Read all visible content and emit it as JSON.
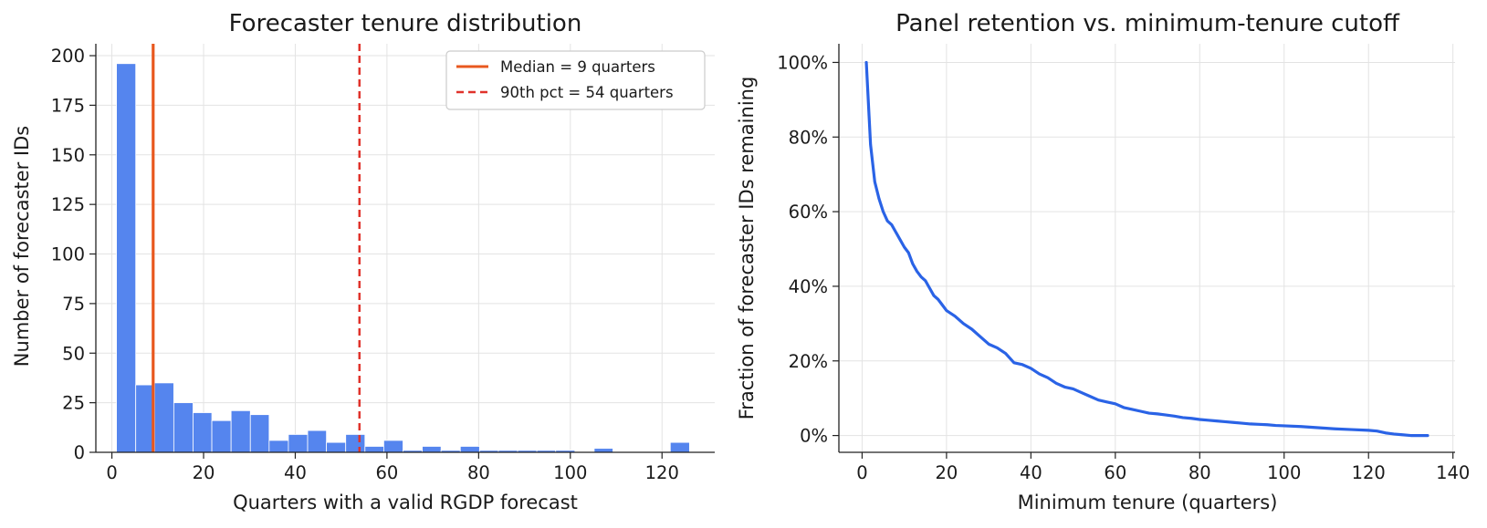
{
  "chart_data": [
    {
      "type": "bar",
      "title": "Forecaster tenure distribution",
      "xlabel": "Quarters with a valid RGDP forecast",
      "ylabel": "Number of forecaster IDs",
      "xlim": [
        -3.5,
        131.5
      ],
      "ylim": [
        0,
        206
      ],
      "xticks": [
        0,
        20,
        40,
        60,
        80,
        100,
        120
      ],
      "yticks": [
        0,
        25,
        50,
        75,
        100,
        125,
        150,
        175,
        200
      ],
      "grid": true,
      "bar_color": "#5585EE",
      "bins": [
        {
          "x0": 1.0,
          "x1": 5.2,
          "count": 196
        },
        {
          "x0": 5.2,
          "x1": 9.3,
          "count": 34
        },
        {
          "x0": 9.3,
          "x1": 13.5,
          "count": 35
        },
        {
          "x0": 13.5,
          "x1": 17.7,
          "count": 25
        },
        {
          "x0": 17.7,
          "x1": 21.8,
          "count": 20
        },
        {
          "x0": 21.8,
          "x1": 26.0,
          "count": 16
        },
        {
          "x0": 26.0,
          "x1": 30.2,
          "count": 21
        },
        {
          "x0": 30.2,
          "x1": 34.3,
          "count": 19
        },
        {
          "x0": 34.3,
          "x1": 38.5,
          "count": 6
        },
        {
          "x0": 38.5,
          "x1": 42.7,
          "count": 9
        },
        {
          "x0": 42.7,
          "x1": 46.8,
          "count": 11
        },
        {
          "x0": 46.8,
          "x1": 51.0,
          "count": 5
        },
        {
          "x0": 51.0,
          "x1": 55.2,
          "count": 9
        },
        {
          "x0": 55.2,
          "x1": 59.3,
          "count": 3
        },
        {
          "x0": 59.3,
          "x1": 63.5,
          "count": 6
        },
        {
          "x0": 63.5,
          "x1": 67.7,
          "count": 1
        },
        {
          "x0": 67.7,
          "x1": 71.8,
          "count": 3
        },
        {
          "x0": 71.8,
          "x1": 76.0,
          "count": 1
        },
        {
          "x0": 76.0,
          "x1": 80.2,
          "count": 3
        },
        {
          "x0": 80.2,
          "x1": 84.3,
          "count": 1
        },
        {
          "x0": 84.3,
          "x1": 88.5,
          "count": 1
        },
        {
          "x0": 88.5,
          "x1": 92.7,
          "count": 1
        },
        {
          "x0": 92.7,
          "x1": 96.8,
          "count": 1
        },
        {
          "x0": 96.8,
          "x1": 101.0,
          "count": 1
        },
        {
          "x0": 101.0,
          "x1": 105.2,
          "count": 0
        },
        {
          "x0": 105.2,
          "x1": 109.3,
          "count": 2
        },
        {
          "x0": 109.3,
          "x1": 113.5,
          "count": 0
        },
        {
          "x0": 113.5,
          "x1": 117.7,
          "count": 0
        },
        {
          "x0": 117.7,
          "x1": 121.8,
          "count": 0
        },
        {
          "x0": 121.8,
          "x1": 126.0,
          "count": 5
        }
      ],
      "reference_lines": [
        {
          "x": 9,
          "label": "Median = 9 quarters",
          "color": "#E8581F",
          "style": "solid"
        },
        {
          "x": 54,
          "label": "90th pct = 54 quarters",
          "color": "#E0322B",
          "style": "dashed"
        }
      ],
      "legend": "top-right"
    },
    {
      "type": "line",
      "title": "Panel retention vs. minimum-tenure cutoff",
      "xlabel": "Minimum tenure (quarters)",
      "ylabel": "Fraction of forecaster IDs remaining",
      "xlim": [
        -5.5,
        140.5
      ],
      "ylim": [
        -0.045,
        1.05
      ],
      "xticks": [
        0,
        20,
        40,
        60,
        80,
        100,
        120,
        140
      ],
      "yticks": [
        0,
        0.2,
        0.4,
        0.6,
        0.8,
        1.0
      ],
      "ytick_labels": [
        "0%",
        "20%",
        "40%",
        "60%",
        "80%",
        "100%"
      ],
      "grid": true,
      "line_color": "#2A63E6",
      "series": [
        {
          "x": [
            1,
            2,
            3,
            4,
            5,
            6,
            7,
            8,
            9,
            10,
            11,
            12,
            13,
            14,
            15,
            16,
            17,
            18,
            19,
            20,
            22,
            24,
            26,
            28,
            30,
            32,
            34,
            36,
            38,
            40,
            42,
            44,
            46,
            48,
            50,
            52,
            54,
            56,
            58,
            60,
            62,
            64,
            66,
            68,
            70,
            72,
            74,
            76,
            78,
            80,
            82,
            84,
            86,
            88,
            90,
            92,
            94,
            96,
            98,
            100,
            104,
            108,
            112,
            116,
            120,
            122,
            124,
            126,
            128,
            130,
            134
          ],
          "y": [
            1.0,
            0.78,
            0.68,
            0.635,
            0.6,
            0.575,
            0.565,
            0.545,
            0.525,
            0.505,
            0.49,
            0.46,
            0.44,
            0.425,
            0.415,
            0.395,
            0.375,
            0.365,
            0.35,
            0.335,
            0.32,
            0.3,
            0.285,
            0.265,
            0.245,
            0.235,
            0.22,
            0.195,
            0.19,
            0.18,
            0.165,
            0.155,
            0.14,
            0.13,
            0.125,
            0.115,
            0.105,
            0.095,
            0.09,
            0.085,
            0.075,
            0.07,
            0.065,
            0.06,
            0.058,
            0.055,
            0.052,
            0.048,
            0.046,
            0.043,
            0.041,
            0.039,
            0.037,
            0.035,
            0.033,
            0.031,
            0.03,
            0.029,
            0.027,
            0.026,
            0.024,
            0.021,
            0.018,
            0.016,
            0.014,
            0.012,
            0.007,
            0.004,
            0.002,
            0.0,
            0.0
          ]
        }
      ]
    }
  ]
}
